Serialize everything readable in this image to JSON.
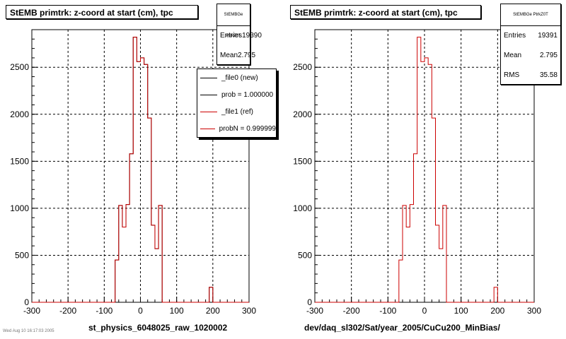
{
  "colors": {
    "new": "#000000",
    "ref": "#cc0000"
  },
  "panels": {
    "left": {
      "title": "StEMB primtrk: z-coord at start (cm), tpc",
      "stats": {
        "name": "StEMBGe PtrkZ0T",
        "rows": [
          {
            "label": "Entries",
            "value": "19390"
          },
          {
            "label": "Mean",
            "value": "2.795"
          }
        ]
      },
      "legend": {
        "entries": [
          {
            "label": "_file0 (new)",
            "color": "#000000"
          },
          {
            "label": "prob = 1.000000",
            "color": "#000000"
          },
          {
            "label": "_file1 (ref)",
            "color": "#cc0000"
          },
          {
            "label": "probN = 0.999999",
            "color": "#cc0000"
          }
        ]
      },
      "x_title": "st_physics_6048025_raw_1020002"
    },
    "right": {
      "title": "StEMB primtrk: z-coord at start (cm), tpc",
      "stats": {
        "name": "StEMBGe PtrkZ0T",
        "rows": [
          {
            "label": "Entries",
            "value": "19391"
          },
          {
            "label": "Mean",
            "value": "2.795"
          },
          {
            "label": "RMS",
            "value": "35.58"
          }
        ]
      },
      "x_title": "dev/daq_sl302/Sat/year_2005/CuCu200_MinBias/"
    }
  },
  "footer_note": "Wed Aug 10 16:17:03 2005",
  "chart_data": [
    {
      "type": "histogram",
      "title": "StEMB primtrk: z-coord at start (cm), tpc",
      "xlabel": "st_physics_6048025_raw_1020002",
      "ylabel": "",
      "xlim": [
        -300,
        300
      ],
      "ylim": [
        0,
        2900
      ],
      "xticks": [
        -300,
        -200,
        -100,
        0,
        100,
        200,
        300
      ],
      "yticks": [
        0,
        500,
        1000,
        1500,
        2000,
        2500
      ],
      "grid": true,
      "legend_position": "top-right",
      "bin_edges": [
        -70,
        -60,
        -50,
        -40,
        -30,
        -20,
        -10,
        0,
        10,
        20,
        30,
        40,
        50,
        60,
        70,
        80,
        190,
        200
      ],
      "series": [
        {
          "name": "_file1 (ref)",
          "color": "#cc0000",
          "values": [
            450,
            1030,
            800,
            1040,
            1580,
            2820,
            2560,
            2600,
            2530,
            1960,
            820,
            570,
            1030,
            0,
            0,
            0,
            160
          ]
        },
        {
          "name": "_file0 (new)",
          "color": "#000000",
          "values": [
            450,
            1030,
            800,
            1040,
            1580,
            2820,
            2560,
            2600,
            2530,
            1960,
            820,
            570,
            1030,
            0,
            0,
            0,
            160
          ]
        }
      ]
    },
    {
      "type": "histogram",
      "title": "StEMB primtrk: z-coord at start (cm), tpc",
      "xlabel": "dev/daq_sl302/Sat/year_2005/CuCu200_MinBias/",
      "ylabel": "",
      "xlim": [
        -300,
        300
      ],
      "ylim": [
        0,
        2900
      ],
      "xticks": [
        -300,
        -200,
        -100,
        0,
        100,
        200,
        300
      ],
      "yticks": [
        0,
        500,
        1000,
        1500,
        2000,
        2500
      ],
      "grid": true,
      "bin_edges": [
        -70,
        -60,
        -50,
        -40,
        -30,
        -20,
        -10,
        0,
        10,
        20,
        30,
        40,
        50,
        60,
        70,
        80,
        190,
        200
      ],
      "series": [
        {
          "name": "",
          "color": "#cc0000",
          "values": [
            450,
            1030,
            800,
            1040,
            1580,
            2820,
            2560,
            2600,
            2530,
            1960,
            820,
            570,
            1030,
            0,
            0,
            0,
            160
          ]
        }
      ]
    }
  ]
}
